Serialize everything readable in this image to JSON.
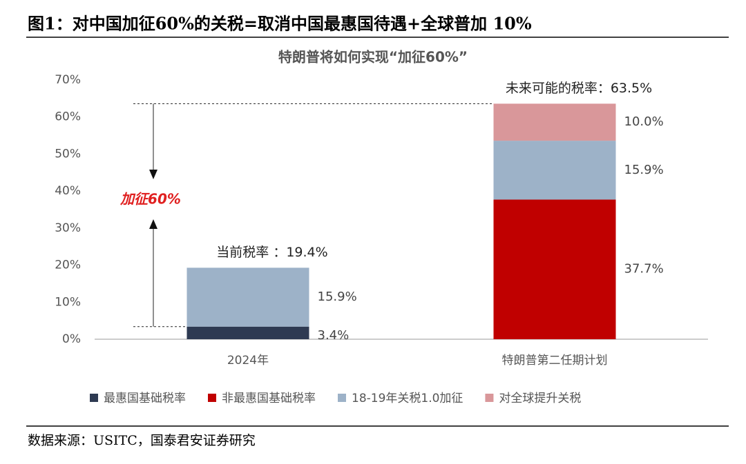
{
  "header": {
    "title": "图1：对中国加征60%的关税=取消中国最惠国待遇+全球普加 10%"
  },
  "chart_data": {
    "type": "bar",
    "stacked": true,
    "title": "特朗普将如何实现“加征60%”",
    "categories": [
      "2024年",
      "特朗普第二任期计划"
    ],
    "series": [
      {
        "name": "最惠国基础税率",
        "color": "#2e3a52",
        "values": [
          3.4,
          null
        ],
        "value_labels": [
          "3.4%",
          null
        ]
      },
      {
        "name": "非最惠国基础税率",
        "color": "#c00000",
        "values": [
          null,
          37.7
        ],
        "value_labels": [
          null,
          "37.7%"
        ]
      },
      {
        "name": "18-19年关税1.0加征",
        "color": "#9db2c8",
        "values": [
          15.9,
          15.9
        ],
        "value_labels": [
          "15.9%",
          "15.9%"
        ]
      },
      {
        "name": "对全球提升关税",
        "color": "#d9979a",
        "values": [
          null,
          10.0
        ],
        "value_labels": [
          null,
          "10.0%"
        ]
      }
    ],
    "annotations": [
      "当前税率 ：19.4%",
      "未来可能的税率：63.5%",
      "加征60%"
    ],
    "ylim": [
      0,
      70
    ],
    "yticks": [
      {
        "value": 0,
        "label": "0%"
      },
      {
        "value": 10,
        "label": "10%"
      },
      {
        "value": 20,
        "label": "20%"
      },
      {
        "value": 30,
        "label": "30%"
      },
      {
        "value": 40,
        "label": "40%"
      },
      {
        "value": 50,
        "label": "50%"
      },
      {
        "value": 60,
        "label": "60%"
      },
      {
        "value": 70,
        "label": "70%"
      }
    ],
    "legend_position": "bottom"
  },
  "footer": {
    "source": "数据来源：USITC，国泰君安证券研究"
  }
}
